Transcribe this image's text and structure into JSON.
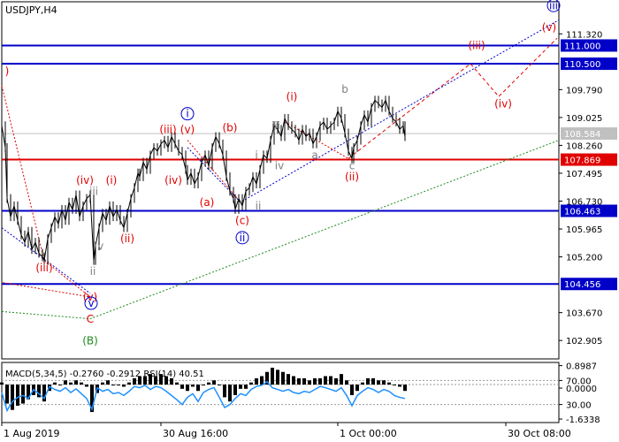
{
  "chart_data": [
    {
      "type": "candlestick",
      "title": "USDJPY,H4",
      "symbol": "USDJPY",
      "timeframe": "H4",
      "ylim": [
        102.4,
        112.2
      ],
      "current_price": 108.584,
      "price_scale_ticks": [
        "111.320",
        "109.790",
        "109.025",
        "108.260",
        "107.495",
        "106.730",
        "105.965",
        "105.200",
        "103.670",
        "102.905"
      ],
      "x_labels": [
        "1 Aug 2019",
        "30 Aug 16:00",
        "1 Oct 00:00",
        "30 Oct 08:00"
      ],
      "series": [
        {
          "name": "price",
          "x": [
            0,
            4,
            6,
            10,
            14,
            18,
            22,
            26,
            30,
            34,
            38,
            42,
            46,
            48,
            52,
            56,
            60,
            64,
            68,
            72,
            76,
            80,
            84,
            88,
            92,
            96,
            100,
            104,
            106,
            110,
            114,
            118,
            122,
            126,
            130,
            134,
            138,
            142,
            146,
            150,
            154,
            156,
            160,
            164,
            168,
            172,
            176,
            180,
            184,
            188,
            192,
            196,
            200,
            204,
            208,
            210,
            214,
            218,
            222,
            226,
            230,
            234,
            238,
            242,
            246,
            250,
            254,
            258,
            262,
            264,
            268,
            272,
            276,
            280,
            284,
            288,
            292,
            296,
            300,
            304,
            308,
            312,
            316,
            320,
            324,
            328,
            332,
            336,
            340,
            344,
            348,
            352,
            356,
            360,
            364,
            368,
            372,
            376,
            380,
            384,
            388,
            392,
            396,
            398,
            402,
            406,
            410,
            414,
            418,
            422,
            426,
            430,
            434,
            438,
            442,
            446,
            450,
            454,
            456
          ],
          "y": [
            108.8,
            108.2,
            106.8,
            106.3,
            106.6,
            106.2,
            105.8,
            105.6,
            105.9,
            105.4,
            105.6,
            105.3,
            105.2,
            105.1,
            105.7,
            106.0,
            106.3,
            106.1,
            106.5,
            106.2,
            106.7,
            106.5,
            106.9,
            106.3,
            106.6,
            106.8,
            106.9,
            105.1,
            105.5,
            106.0,
            106.4,
            106.2,
            106.6,
            106.3,
            106.5,
            106.2,
            106.0,
            106.4,
            106.8,
            107.1,
            107.5,
            107.4,
            107.8,
            107.6,
            108.0,
            108.2,
            108.1,
            108.3,
            108.4,
            108.2,
            108.5,
            108.3,
            108.1,
            108.0,
            107.6,
            107.3,
            107.5,
            107.2,
            107.4,
            107.8,
            108.0,
            107.7,
            108.2,
            108.5,
            108.3,
            108.0,
            107.4,
            107.0,
            106.8,
            106.5,
            106.8,
            106.6,
            107.0,
            107.1,
            107.4,
            107.2,
            107.6,
            108.0,
            107.9,
            108.4,
            108.8,
            108.7,
            108.5,
            109.0,
            108.8,
            108.7,
            108.6,
            108.4,
            108.7,
            108.5,
            108.6,
            108.3,
            108.5,
            108.8,
            108.9,
            108.7,
            108.8,
            108.9,
            109.2,
            109.0,
            108.6,
            108.1,
            107.9,
            108.2,
            108.4,
            108.8,
            109.1,
            108.9,
            109.3,
            109.5,
            109.4,
            109.3,
            109.5,
            109.2,
            109.0,
            108.9,
            108.7,
            108.8,
            108.5
          ]
        }
      ],
      "horizontal_levels": [
        {
          "value": 111.0,
          "label": "111.000",
          "color": "#0000c8"
        },
        {
          "value": 110.5,
          "label": "110.500",
          "color": "#0000c8"
        },
        {
          "value": 107.869,
          "label": "107.869",
          "color": "#e00000"
        },
        {
          "value": 106.463,
          "label": "106.463",
          "color": "#0000c8"
        },
        {
          "value": 104.456,
          "label": "104.456",
          "color": "#0000c8"
        }
      ],
      "trend_lines": [
        {
          "style": "red-dashed",
          "points": [
            [
              392,
              107.9
            ],
            [
              530,
              110.5
            ],
            [
              562,
              109.6
            ],
            [
              628,
              111.2
            ]
          ]
        },
        {
          "style": "red-dotted",
          "points": [
            [
              0,
              109.9
            ],
            [
              48,
              105.1
            ],
            [
              100,
              104.1
            ],
            [
              0,
              104.5
            ]
          ]
        },
        {
          "style": "blue-dotted",
          "points": [
            [
              0,
              106.0
            ],
            [
              100,
              104.2
            ]
          ]
        },
        {
          "style": "blue-dotted",
          "points": [
            [
              210,
              108.2
            ],
            [
              270,
              106.7
            ],
            [
              630,
              111.7
            ]
          ]
        },
        {
          "style": "red-dotted",
          "points": [
            [
              320,
              108.9
            ],
            [
              392,
              107.9
            ]
          ]
        },
        {
          "style": "red-dotted",
          "points": [
            [
              210,
              108.4
            ],
            [
              270,
              106.7
            ]
          ]
        },
        {
          "style": "green-dotted",
          "points": [
            [
              0,
              103.7
            ],
            [
              100,
              103.5
            ],
            [
              630,
              108.4
            ]
          ]
        }
      ],
      "wave_labels": [
        {
          "text": ")",
          "x": 6,
          "y": 110.2,
          "color": "#e00000"
        },
        {
          "text": "(iii)",
          "x": 48,
          "y": 104.8,
          "color": "#e00000"
        },
        {
          "text": "(iv)",
          "x": 94,
          "y": 107.2,
          "color": "#e00000"
        },
        {
          "text": "iii",
          "x": 104,
          "y": 106.9,
          "color": "#808080"
        },
        {
          "text": "(v)",
          "x": 100,
          "y": 104.0,
          "color": "#e00000"
        },
        {
          "text": "v",
          "x": 101,
          "y": 103.83,
          "color": "#0000c8",
          "circled": true
        },
        {
          "text": "C",
          "x": 100,
          "y": 103.4,
          "color": "#e00000"
        },
        {
          "text": "(B)",
          "x": 100,
          "y": 102.8,
          "color": "#1e8c1e"
        },
        {
          "text": "iv",
          "x": 110,
          "y": 105.4,
          "color": "#808080"
        },
        {
          "text": "ii",
          "x": 103,
          "y": 104.7,
          "color": "#808080"
        },
        {
          "text": "(i)",
          "x": 124,
          "y": 107.2,
          "color": "#e00000"
        },
        {
          "text": "(ii)",
          "x": 142,
          "y": 105.6,
          "color": "#e00000"
        },
        {
          "text": "(iii)",
          "x": 188,
          "y": 108.6,
          "color": "#e00000"
        },
        {
          "text": "(v)",
          "x": 210,
          "y": 108.6,
          "color": "#e00000"
        },
        {
          "text": "i",
          "x": 210,
          "y": 109.03,
          "color": "#0000c8",
          "circled": true
        },
        {
          "text": "(iv)",
          "x": 194,
          "y": 107.2,
          "color": "#e00000"
        },
        {
          "text": "(a)",
          "x": 232,
          "y": 106.6,
          "color": "#e00000"
        },
        {
          "text": "(b)",
          "x": 258,
          "y": 108.65,
          "color": "#e00000"
        },
        {
          "text": "(c)",
          "x": 272,
          "y": 106.1,
          "color": "#e00000"
        },
        {
          "text": "ii",
          "x": 272,
          "y": 105.63,
          "color": "#0000c8",
          "circled": true
        },
        {
          "text": "i",
          "x": 288,
          "y": 107.9,
          "color": "#808080"
        },
        {
          "text": "ii",
          "x": 290,
          "y": 106.5,
          "color": "#808080"
        },
        {
          "text": "iii",
          "x": 310,
          "y": 108.7,
          "color": "#808080"
        },
        {
          "text": "iv",
          "x": 314,
          "y": 107.6,
          "color": "#808080"
        },
        {
          "text": "(i)",
          "x": 328,
          "y": 109.5,
          "color": "#e00000"
        },
        {
          "text": "a",
          "x": 354,
          "y": 107.9,
          "color": "#808080"
        },
        {
          "text": "b",
          "x": 388,
          "y": 109.7,
          "color": "#808080"
        },
        {
          "text": "c",
          "x": 396,
          "y": 107.6,
          "color": "#808080"
        },
        {
          "text": "(ii)",
          "x": 396,
          "y": 107.3,
          "color": "#e00000"
        },
        {
          "text": "(iii)",
          "x": 537,
          "y": 110.9,
          "color": "#e00000"
        },
        {
          "text": "(iv)",
          "x": 567,
          "y": 109.3,
          "color": "#e00000"
        },
        {
          "text": "(v)",
          "x": 619,
          "y": 111.4,
          "color": "#e00000"
        },
        {
          "text": "iii",
          "x": 624,
          "y": 112.0,
          "color": "#0000c8",
          "circled": true
        }
      ]
    },
    {
      "type": "line",
      "title": "MACD(5,34,5) -0.2760 -0.2912 RSI(14) 40.51",
      "macd_label": "MACD(5,34,5)",
      "macd_value": "-0.2760",
      "signal_value": "-0.2912",
      "rsi_label": "RSI(14)",
      "rsi_value": "40.51",
      "ylim": [
        -1.8,
        1.05
      ],
      "scale_ticks": [
        "0.8987",
        "70.00",
        "0.0000",
        "30.00",
        "-1.6338"
      ],
      "series": [
        {
          "name": "MACD",
          "x": [
            0,
            6,
            12,
            18,
            24,
            30,
            36,
            42,
            48,
            54,
            60,
            66,
            72,
            78,
            84,
            90,
            96,
            102,
            108,
            114,
            120,
            126,
            132,
            138,
            144,
            150,
            156,
            162,
            168,
            174,
            180,
            186,
            192,
            198,
            204,
            210,
            216,
            222,
            228,
            234,
            240,
            246,
            252,
            258,
            264,
            270,
            276,
            282,
            288,
            294,
            300,
            306,
            312,
            318,
            324,
            330,
            336,
            342,
            348,
            354,
            360,
            366,
            372,
            378,
            384,
            390,
            396,
            402,
            408,
            414,
            420,
            426,
            432,
            438,
            444,
            450,
            456
          ],
          "y": [
            0.1,
            -0.9,
            -1.2,
            -1.0,
            -0.9,
            -0.7,
            -0.5,
            -0.6,
            -0.8,
            -0.3,
            0.1,
            0.0,
            0.2,
            0.1,
            0.2,
            0.1,
            -0.1,
            -1.3,
            -0.4,
            0.1,
            0.2,
            0.0,
            0.0,
            -0.1,
            0.1,
            0.3,
            0.4,
            0.4,
            0.5,
            0.4,
            0.5,
            0.4,
            0.3,
            0.1,
            -0.2,
            -0.3,
            -0.1,
            -0.3,
            0.0,
            0.1,
            0.2,
            0.0,
            -0.6,
            -0.8,
            -0.5,
            -0.2,
            -0.2,
            0.1,
            0.3,
            0.4,
            0.6,
            0.8,
            0.7,
            0.6,
            0.5,
            0.4,
            0.3,
            0.3,
            0.2,
            0.3,
            0.3,
            0.4,
            0.4,
            0.3,
            0.5,
            0.2,
            -0.5,
            -0.3,
            0.1,
            0.3,
            0.3,
            0.2,
            0.2,
            0.1,
            0.0,
            -0.1,
            -0.3
          ]
        },
        {
          "name": "RSI",
          "x": [
            0,
            6,
            12,
            18,
            24,
            30,
            36,
            42,
            48,
            54,
            60,
            66,
            72,
            78,
            84,
            90,
            96,
            102,
            108,
            114,
            120,
            126,
            132,
            138,
            144,
            150,
            156,
            162,
            168,
            174,
            180,
            186,
            192,
            198,
            204,
            210,
            216,
            222,
            228,
            234,
            240,
            246,
            252,
            258,
            264,
            270,
            276,
            282,
            288,
            294,
            300,
            306,
            312,
            318,
            324,
            330,
            336,
            342,
            348,
            354,
            360,
            366,
            372,
            378,
            384,
            390,
            396,
            402,
            408,
            414,
            420,
            426,
            432,
            438,
            444,
            450,
            456
          ],
          "y": [
            50,
            20,
            35,
            42,
            45,
            40,
            55,
            48,
            40,
            60,
            55,
            52,
            58,
            50,
            56,
            48,
            40,
            22,
            58,
            52,
            55,
            48,
            50,
            45,
            52,
            60,
            58,
            62,
            55,
            60,
            58,
            52,
            45,
            38,
            30,
            42,
            48,
            35,
            50,
            55,
            58,
            42,
            25,
            30,
            40,
            48,
            45,
            55,
            60,
            62,
            68,
            58,
            55,
            52,
            55,
            50,
            48,
            52,
            50,
            55,
            60,
            58,
            55,
            52,
            58,
            45,
            28,
            45,
            52,
            58,
            55,
            50,
            55,
            52,
            45,
            42,
            40
          ]
        }
      ]
    }
  ]
}
